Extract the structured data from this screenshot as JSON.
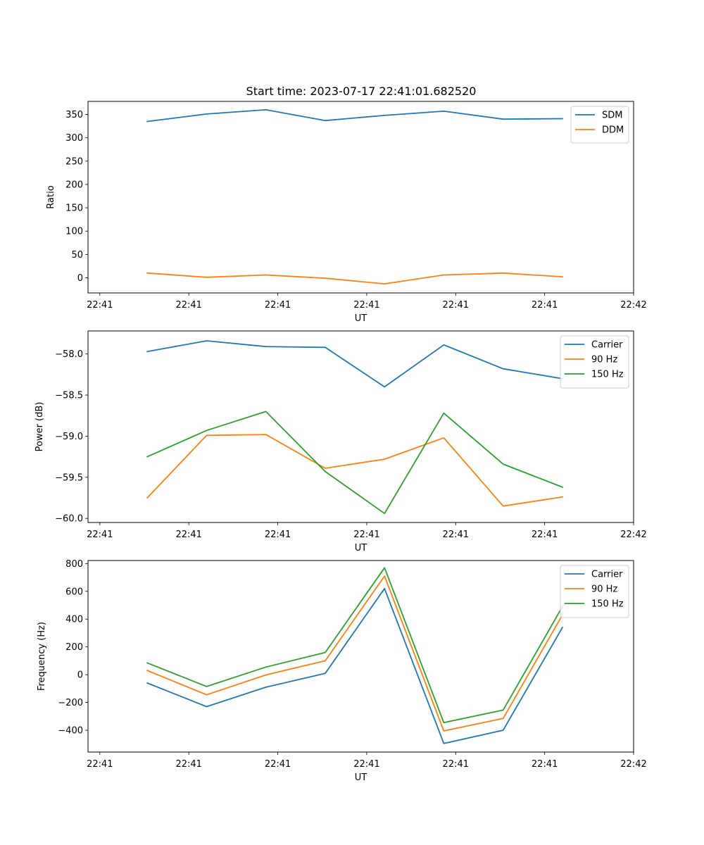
{
  "figure_title": "Start time: 2023-07-17 22:41:01.682520",
  "chart_data": [
    {
      "type": "line",
      "title": "Start time: 2023-07-17 22:41:01.682520",
      "xlabel": "UT",
      "ylabel": "Ratio",
      "x": [
        1,
        2,
        3,
        4,
        5,
        6,
        7,
        8
      ],
      "xlim": [
        0.0,
        9.2
      ],
      "xticks": [
        0.2,
        1.7,
        3.2,
        4.7,
        6.2,
        7.7,
        9.2
      ],
      "xtick_labels": [
        "22:41",
        "22:41",
        "22:41",
        "22:41",
        "22:41",
        "22:41",
        "22:42"
      ],
      "ylim": [
        -32.5,
        378
      ],
      "yticks": [
        0,
        50,
        100,
        150,
        200,
        250,
        300,
        350
      ],
      "ytick_labels": [
        "0",
        "50",
        "100",
        "150",
        "200",
        "250",
        "300",
        "350"
      ],
      "legend_position": "top-right",
      "series": [
        {
          "name": "SDM",
          "color": "#1f77b4",
          "values": [
            335,
            351,
            360,
            337,
            348,
            357,
            340,
            341
          ]
        },
        {
          "name": "DDM",
          "color": "#ff7f0e",
          "values": [
            10,
            1,
            6,
            -1,
            -13,
            6,
            10,
            2
          ]
        }
      ]
    },
    {
      "type": "line",
      "title": "",
      "xlabel": "UT",
      "ylabel": "Power (dB)",
      "x": [
        1,
        2,
        3,
        4,
        5,
        6,
        7,
        8
      ],
      "xlim": [
        0.0,
        9.2
      ],
      "xticks": [
        0.2,
        1.7,
        3.2,
        4.7,
        6.2,
        7.7,
        9.2
      ],
      "xtick_labels": [
        "22:41",
        "22:41",
        "22:41",
        "22:41",
        "22:41",
        "22:41",
        "22:42"
      ],
      "ylim": [
        -60.05,
        -57.72
      ],
      "yticks": [
        -60.0,
        -59.5,
        -59.0,
        -58.5,
        -58.0
      ],
      "ytick_labels": [
        "−60.0",
        "−59.5",
        "−59.0",
        "−58.5",
        "−58.0"
      ],
      "legend_position": "top-right",
      "series": [
        {
          "name": "Carrier",
          "color": "#1f77b4",
          "values": [
            -57.97,
            -57.84,
            -57.91,
            -57.92,
            -58.4,
            -57.89,
            -58.18,
            -58.3
          ]
        },
        {
          "name": "90 Hz",
          "color": "#ff7f0e",
          "values": [
            -59.75,
            -58.99,
            -58.98,
            -59.39,
            -59.28,
            -59.02,
            -59.85,
            -59.74
          ]
        },
        {
          "name": "150 Hz",
          "color": "#2ca02c",
          "values": [
            -59.25,
            -58.93,
            -58.7,
            -59.43,
            -59.94,
            -58.72,
            -59.34,
            -59.62
          ]
        }
      ]
    },
    {
      "type": "line",
      "title": "",
      "xlabel": "UT",
      "ylabel": "Frequency (Hz)",
      "x": [
        1,
        2,
        3,
        4,
        5,
        6,
        7,
        8
      ],
      "xlim": [
        0.0,
        9.2
      ],
      "xticks": [
        0.2,
        1.7,
        3.2,
        4.7,
        6.2,
        7.7,
        9.2
      ],
      "xtick_labels": [
        "22:41",
        "22:41",
        "22:41",
        "22:41",
        "22:41",
        "22:41",
        "22:42"
      ],
      "ylim": [
        -557,
        822
      ],
      "yticks": [
        -400,
        -200,
        0,
        200,
        400,
        600,
        800
      ],
      "ytick_labels": [
        "−400",
        "−200",
        "0",
        "200",
        "400",
        "600",
        "800"
      ],
      "legend_position": "top-right",
      "series": [
        {
          "name": "Carrier",
          "color": "#1f77b4",
          "values": [
            -60,
            -230,
            -90,
            10,
            620,
            -495,
            -400,
            340
          ]
        },
        {
          "name": "90 Hz",
          "color": "#ff7f0e",
          "values": [
            30,
            -145,
            -2,
            100,
            710,
            -405,
            -315,
            430
          ]
        },
        {
          "name": "150 Hz",
          "color": "#2ca02c",
          "values": [
            85,
            -85,
            55,
            160,
            770,
            -345,
            -255,
            490
          ]
        }
      ]
    }
  ]
}
